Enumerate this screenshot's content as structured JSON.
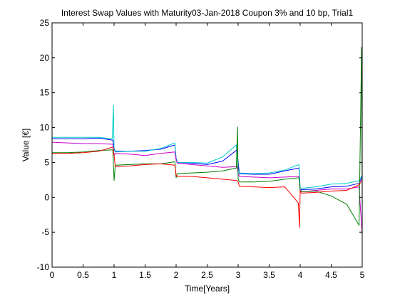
{
  "chart_data": {
    "type": "line",
    "title": "Interest Swap Values with Maturity03-Jan-2018 Coupon 3% and 10 bp, Trial1",
    "xlabel": "Time[Years]",
    "ylabel": "Value [€]",
    "xlim": [
      0,
      5
    ],
    "ylim": [
      -10,
      25
    ],
    "xticks": [
      0,
      0.5,
      1,
      1.5,
      2,
      2.5,
      3,
      3.5,
      4,
      4.5,
      5
    ],
    "xtick_labels": [
      "0",
      "0.5",
      "1",
      "1.5",
      "2",
      "2.5",
      "3",
      "3.5",
      "4",
      "4.5",
      "5"
    ],
    "yticks": [
      -10,
      -5,
      0,
      5,
      10,
      15,
      20,
      25
    ],
    "ytick_labels": [
      "-10",
      "-5",
      "0",
      "5",
      "10",
      "15",
      "20",
      "25"
    ],
    "grid": false,
    "legend": "none",
    "series": [
      {
        "color": "#0000ff",
        "x": [
          0,
          0.25,
          0.5,
          0.75,
          0.98,
          1.0,
          1.02,
          1.25,
          1.5,
          1.75,
          1.98,
          2.0,
          2.02,
          2.25,
          2.5,
          2.75,
          2.98,
          3.0,
          3.02,
          3.25,
          3.5,
          3.75,
          3.98,
          4.0,
          4.02,
          4.25,
          4.5,
          4.75,
          4.95,
          5.0
        ],
        "y": [
          8.4,
          8.4,
          8.4,
          8.5,
          8.2,
          7.0,
          6.6,
          6.6,
          6.7,
          6.9,
          7.5,
          5.6,
          5.0,
          4.9,
          4.7,
          5.2,
          6.8,
          5.0,
          3.4,
          3.3,
          3.3,
          3.8,
          4.2,
          0.9,
          1.1,
          1.2,
          1.5,
          1.6,
          2.0,
          3.0
        ]
      },
      {
        "color": "#00cccc",
        "x": [
          0,
          0.25,
          0.5,
          0.75,
          0.97,
          0.99,
          1.0,
          1.02,
          1.25,
          1.5,
          1.75,
          1.98,
          2.0,
          2.02,
          2.25,
          2.5,
          2.75,
          2.97,
          3.0,
          3.02,
          3.25,
          3.5,
          3.75,
          3.98,
          4.0,
          4.02,
          4.25,
          4.5,
          4.75,
          4.95,
          5.0
        ],
        "y": [
          8.6,
          8.6,
          8.6,
          8.6,
          8.4,
          13.2,
          6.8,
          6.5,
          6.6,
          6.6,
          7.0,
          7.8,
          5.4,
          5.0,
          5.0,
          4.9,
          5.8,
          7.5,
          4.0,
          3.5,
          3.4,
          3.5,
          3.9,
          4.7,
          1.4,
          1.3,
          1.5,
          1.9,
          2.0,
          2.4,
          3.2
        ]
      },
      {
        "color": "#cc00cc",
        "x": [
          0,
          0.25,
          0.5,
          0.75,
          0.98,
          1.0,
          1.02,
          1.25,
          1.5,
          1.75,
          1.98,
          2.0,
          2.02,
          2.25,
          2.5,
          2.75,
          2.98,
          3.0,
          3.02,
          3.25,
          3.5,
          3.75,
          3.98,
          4.0,
          4.02,
          4.25,
          4.5,
          4.75,
          4.95,
          5.0
        ],
        "y": [
          7.9,
          7.8,
          7.7,
          7.7,
          7.6,
          6.0,
          6.3,
          6.2,
          6.0,
          6.3,
          6.5,
          5.3,
          4.9,
          4.7,
          4.5,
          4.3,
          4.4,
          3.5,
          3.0,
          2.9,
          2.8,
          2.9,
          3.0,
          1.0,
          0.8,
          1.0,
          1.2,
          1.2,
          1.5,
          -5.5
        ]
      },
      {
        "color": "#007f00",
        "x": [
          0,
          0.25,
          0.5,
          0.75,
          0.98,
          1.0,
          1.02,
          1.25,
          1.5,
          1.75,
          1.98,
          2.0,
          2.02,
          2.25,
          2.5,
          2.75,
          2.97,
          2.99,
          3.0,
          3.02,
          3.25,
          3.5,
          3.75,
          3.98,
          4.0,
          4.02,
          4.25,
          4.5,
          4.75,
          4.95,
          4.99,
          5.0
        ],
        "y": [
          6.4,
          6.4,
          6.5,
          6.7,
          6.8,
          2.4,
          4.6,
          4.7,
          4.8,
          4.8,
          5.1,
          2.8,
          3.4,
          3.5,
          3.6,
          3.8,
          4.2,
          10.1,
          2.6,
          2.2,
          2.2,
          2.3,
          2.6,
          2.8,
          1.0,
          0.8,
          0.9,
          0.2,
          -1.0,
          -4.0,
          21.5,
          -2.0
        ]
      },
      {
        "color": "#ff0000",
        "x": [
          0,
          0.25,
          0.5,
          0.75,
          0.98,
          1.0,
          1.02,
          1.25,
          1.5,
          1.75,
          1.98,
          2.0,
          2.02,
          2.25,
          2.5,
          2.75,
          2.98,
          3.0,
          3.02,
          3.25,
          3.5,
          3.75,
          3.97,
          3.99,
          4.0,
          4.02,
          4.25,
          4.5,
          4.75,
          4.95,
          5.0
        ],
        "y": [
          6.3,
          6.3,
          6.4,
          6.6,
          7.2,
          6.0,
          4.4,
          4.5,
          4.7,
          4.8,
          4.6,
          3.2,
          3.0,
          3.0,
          2.8,
          2.6,
          2.4,
          2.2,
          1.6,
          1.5,
          1.4,
          1.5,
          -0.8,
          -4.3,
          1.0,
          0.6,
          0.7,
          0.9,
          1.0,
          1.8,
          2.5
        ]
      }
    ]
  }
}
